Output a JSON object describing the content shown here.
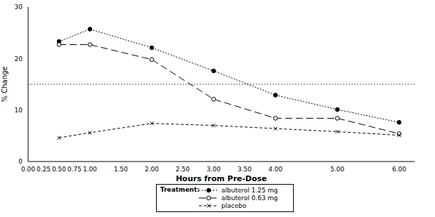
{
  "chart_data": {
    "type": "line",
    "x_label": "Hours from Pre-Dose",
    "y_label": "% Change",
    "legend_title": "Treatment:",
    "x": [
      0.5,
      1,
      2,
      3,
      4,
      5,
      6
    ],
    "series": [
      {
        "name": "albuterol 1.25 mg",
        "color": "#000000",
        "marker": "filled_circle",
        "line_style": "dotted",
        "values": [
          23.3,
          25.7,
          22.1,
          17.6,
          12.9,
          10.1,
          7.6
        ]
      },
      {
        "name": "albuterol 0.63 mg",
        "color": "#000000",
        "marker": "open_circle",
        "line_style": "long_dashed",
        "values": [
          22.7,
          22.7,
          19.8,
          12.1,
          8.4,
          8.4,
          5.4
        ]
      },
      {
        "name": "placebo",
        "color": "#000000",
        "marker": "x",
        "line_style": "dashed",
        "values": [
          4.6,
          5.6,
          7.4,
          7.0,
          6.4,
          5.8,
          5.1
        ]
      }
    ],
    "reference_line": 15,
    "xlim": [
      0,
      6.25
    ],
    "xticks": [
      {
        "value": 0,
        "label": "0.00"
      },
      {
        "value": 0.25,
        "label": "0.25"
      },
      {
        "value": 0.5,
        "label": "0.50"
      },
      {
        "value": 0.75,
        "label": "0.75"
      },
      {
        "value": 1,
        "label": "1.00"
      },
      {
        "value": 1.5,
        "label": "1.50"
      },
      {
        "value": 2,
        "label": "2.00"
      },
      {
        "value": 2.5,
        "label": "2.50"
      },
      {
        "value": 3,
        "label": "3.00"
      },
      {
        "value": 3.5,
        "label": "3.50"
      },
      {
        "value": 4,
        "label": "4.00"
      },
      {
        "value": 5,
        "label": "5.00"
      },
      {
        "value": 6,
        "label": "6.00"
      }
    ],
    "ylim": [
      0,
      30
    ],
    "yticks": [
      0,
      10,
      20,
      30
    ],
    "grid": false
  }
}
